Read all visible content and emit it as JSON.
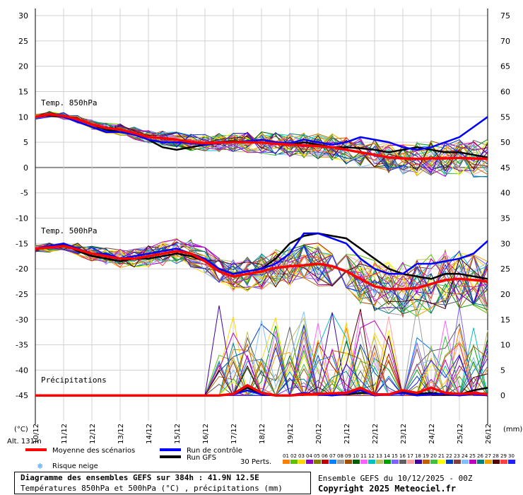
{
  "chart_data": {
    "type": "line",
    "title": "Diagramme des ensembles GEFS sur 384h : 41.9N 12.5E",
    "subtitle": "Températures 850hPa et 500hPa (°C) , précipitations (mm)",
    "left_axis_label": "(°C)",
    "right_axis_label": "(mm)",
    "left_ticks": [
      30,
      25,
      20,
      15,
      10,
      5,
      0,
      -5,
      -10,
      -15,
      -20,
      -25,
      -30,
      -35,
      -40,
      -45
    ],
    "right_ticks": [
      75,
      70,
      65,
      60,
      55,
      50,
      45,
      40,
      35,
      30,
      25,
      20,
      15,
      10,
      5,
      0
    ],
    "x_ticks": [
      "10/12",
      "11/12",
      "12/12",
      "13/12",
      "14/12",
      "15/12",
      "16/12",
      "17/12",
      "18/12",
      "19/12",
      "20/12",
      "21/12",
      "22/12",
      "23/12",
      "24/12",
      "25/12",
      "26/12"
    ],
    "ylim_left": [
      -50,
      30
    ],
    "ylim_right": [
      0,
      75
    ],
    "panel_labels": [
      "Temp. 850hPa",
      "Temp. 500hPa",
      "Précipitations"
    ],
    "altitude": "Alt. 131m",
    "series": [
      {
        "name": "Moyenne des scénarios",
        "role": "mean",
        "color": "#ff0000",
        "t850_x": [
          0,
          0.5,
          1,
          1.5,
          2,
          2.5,
          3,
          3.5,
          4,
          4.5,
          5,
          5.5,
          6,
          6.5,
          7,
          7.5,
          8,
          8.5,
          9,
          9.5,
          10,
          10.5,
          11,
          11.5,
          12,
          12.5,
          13,
          13.5,
          14,
          14.5,
          15,
          15.5,
          16
        ],
        "t850": [
          10,
          10.5,
          10.2,
          9.5,
          8.5,
          7.8,
          7.5,
          6.8,
          6,
          5.8,
          5.5,
          5,
          4.8,
          4.9,
          5,
          5,
          4.9,
          4.7,
          4.5,
          4.4,
          4.2,
          4,
          3.5,
          3,
          2.5,
          2,
          1.8,
          1.7,
          1.8,
          1.8,
          1.9,
          1.8,
          1.7
        ],
        "t500": [
          -16,
          -15.8,
          -15.5,
          -16.2,
          -17,
          -17.5,
          -18,
          -18,
          -17.5,
          -17,
          -16.5,
          -17,
          -18.5,
          -20.5,
          -21.5,
          -21,
          -20.5,
          -19.8,
          -19.5,
          -19.3,
          -19,
          -19.5,
          -20.5,
          -22,
          -23.5,
          -24,
          -24,
          -23.8,
          -23,
          -22.2,
          -22,
          -22.2,
          -22.5
        ],
        "precip": [
          0,
          0,
          0,
          0,
          0,
          0,
          0,
          0,
          0,
          0,
          0,
          0,
          0,
          0,
          0.3,
          2,
          0.5,
          0,
          0,
          0.2,
          0.3,
          0.4,
          0.5,
          1.5,
          0.2,
          0.2,
          1,
          0.5,
          1.5,
          0.5,
          0.3,
          0.5,
          0.2
        ]
      },
      {
        "name": "Run de contrôle",
        "role": "control",
        "color": "#0000ff",
        "t850": [
          10,
          10.5,
          10,
          9,
          8,
          7,
          7,
          6.5,
          5.5,
          5,
          5,
          4.8,
          4.5,
          4.8,
          5,
          5.2,
          5.5,
          5,
          4.8,
          5.5,
          5,
          4.5,
          5,
          6,
          5.5,
          5,
          4,
          3.5,
          4,
          5,
          6,
          8,
          10
        ],
        "t500": [
          -16,
          -15.5,
          -15,
          -16,
          -17,
          -17,
          -18,
          -17.5,
          -17,
          -16.5,
          -16,
          -17,
          -18,
          -20,
          -21,
          -20.5,
          -20,
          -19,
          -17,
          -13,
          -13,
          -14,
          -15,
          -18,
          -20,
          -21,
          -21,
          -19,
          -19,
          -18.5,
          -18,
          -17,
          -14.5
        ],
        "precip": [
          0,
          0,
          0,
          0,
          0,
          0,
          0,
          0,
          0,
          0,
          0,
          0,
          0,
          0,
          0.2,
          1,
          0.2,
          0,
          0,
          0.5,
          0.2,
          0,
          0.3,
          1,
          0,
          0.2,
          0.5,
          0,
          0.2,
          0.3,
          0,
          0.3,
          0
        ]
      },
      {
        "name": "Run GFS",
        "role": "gfs",
        "color": "#000000",
        "t850": [
          10,
          10.3,
          10,
          9.5,
          8.5,
          7.5,
          7,
          6.5,
          5.5,
          4,
          3.5,
          4,
          4.5,
          5,
          5.2,
          5,
          5.5,
          5,
          4.5,
          5,
          4.5,
          4,
          4,
          3.8,
          3.5,
          3,
          3.5,
          4,
          3.5,
          3,
          3,
          2.5,
          2
        ],
        "t500": [
          -16,
          -15.5,
          -15.2,
          -16.5,
          -17.5,
          -18,
          -18.5,
          -18,
          -18,
          -17.5,
          -17,
          -17.5,
          -18.5,
          -20,
          -21,
          -20.5,
          -20,
          -18,
          -15,
          -13.5,
          -13,
          -13.5,
          -14,
          -16,
          -18,
          -20,
          -21,
          -21.5,
          -22,
          -21,
          -21,
          -21.5,
          -22
        ],
        "precip": [
          0,
          0,
          0,
          0,
          0,
          0,
          0,
          0,
          0,
          0,
          0,
          0,
          0,
          0,
          0.3,
          1.5,
          0.3,
          0,
          0,
          0.2,
          0.4,
          0.3,
          0.2,
          0.5,
          0.3,
          0.2,
          0.8,
          0.3,
          0.5,
          0.2,
          0.2,
          1,
          1.5
        ]
      }
    ],
    "perturbations_label": "30 Perts.",
    "perturbation_codes": [
      "01",
      "02",
      "03",
      "04",
      "05",
      "06",
      "07",
      "08",
      "09",
      "10",
      "11",
      "12",
      "13",
      "14",
      "15",
      "16",
      "17",
      "18",
      "19",
      "20",
      "21",
      "22",
      "23",
      "24",
      "25",
      "26",
      "27",
      "28",
      "29",
      "30"
    ],
    "perturbation_colors": [
      "#ff8000",
      "#60c000",
      "#ffd700",
      "#9000c0",
      "#808000",
      "#c00000",
      "#0080ff",
      "#a0a0a0",
      "#a05000",
      "#006000",
      "#ff60ff",
      "#00c0c0",
      "#c0c060",
      "#00a000",
      "#8060ff",
      "#606060",
      "#ffa0a0",
      "#4000a0",
      "#c06000",
      "#40c040",
      "#ffff00",
      "#0040c0",
      "#804040",
      "#80c0ff",
      "#c000c0",
      "#008080",
      "#f0a000",
      "#500000",
      "#ff4040",
      "#2020ff"
    ]
  },
  "legend": {
    "mean": "Moyenne des scénarios",
    "control": "Run de contrôle",
    "gfs": "Run GFS",
    "snow": "Risque neige",
    "perts": "30 Perts."
  },
  "footer": {
    "title": "Diagramme des ensembles GEFS sur 384h : 41.9N 12.5E",
    "subtitle": "Températures 850hPa et 500hPa (°C) , précipitations (mm)",
    "run_info": "Ensemble GEFS du 10/12/2025 - 00Z",
    "copyright": "Copyright 2025 Meteociel.fr"
  }
}
